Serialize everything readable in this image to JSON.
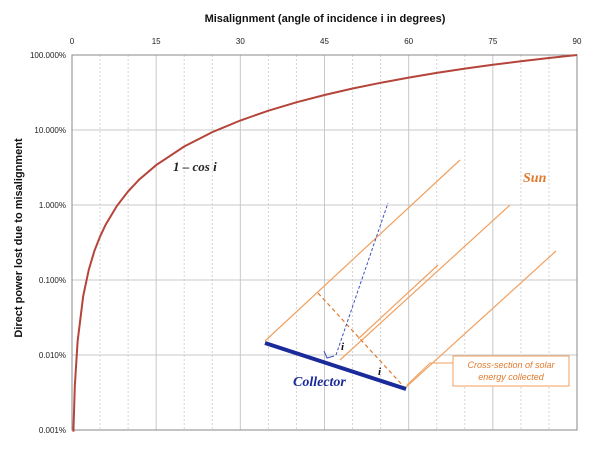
{
  "chart_data": {
    "type": "line",
    "xlabel": "Misalignment  (angle of incidence  i  in degrees)",
    "ylabel": "Direct power lost due to misalignment",
    "x_ticks": [
      0,
      15,
      30,
      45,
      60,
      75,
      90
    ],
    "y_ticks": [
      "0.001%",
      "0.010%",
      "0.100%",
      "1.000%",
      "10.000%",
      "100.000%"
    ],
    "xlim": [
      0,
      90
    ],
    "ylim": [
      0.001,
      100
    ],
    "y_scale": "log",
    "x_axis_position": "top",
    "grid": true,
    "series": [
      {
        "x": [
          0.25,
          0.5,
          1,
          2,
          3,
          4,
          5,
          6,
          8,
          10,
          12,
          15,
          20,
          25,
          30,
          35,
          40,
          45,
          50,
          55,
          60,
          65,
          70,
          75,
          80,
          85,
          90
        ],
        "values": [
          0.00095,
          0.0038,
          0.0152,
          0.061,
          0.137,
          0.244,
          0.381,
          0.548,
          0.973,
          1.519,
          2.185,
          3.407,
          6.031,
          9.369,
          13.397,
          18.085,
          23.396,
          29.289,
          35.721,
          42.642,
          50.0,
          57.738,
          65.798,
          74.118,
          82.635,
          91.284,
          100.0
        ]
      }
    ],
    "annotations": {
      "curve_label": "1 – cos i",
      "sun": "Sun",
      "collector": "Collector",
      "angle_symbol": "i",
      "callout_line1": "Cross-section of solar",
      "callout_line2": "energy collected"
    },
    "colors": {
      "curve": "#B5443A",
      "sun_rays": "#F0A060",
      "collector": "#1a2a9a",
      "normal": "#4050c0",
      "annotation_text": "#E07A2E"
    }
  }
}
